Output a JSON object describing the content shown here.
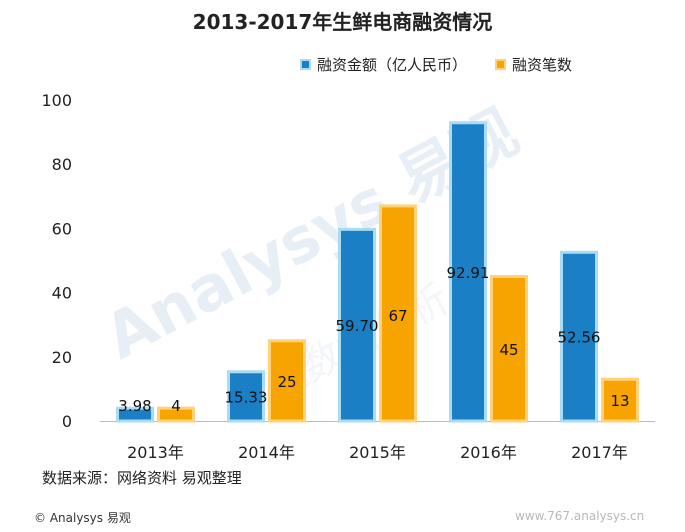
{
  "title": "2013-2017年生鲜电商融资情况",
  "source": "数据来源：网络资料 易观整理",
  "footer": "© Analysys 易观",
  "watermark": {
    "text": "Analysys 易观",
    "sub": "易观数据分析",
    "url": "www.767.analysys.cn"
  },
  "colors": {
    "series1": "#1a7fc4",
    "series1_edge": "#a9dcf2",
    "series2": "#f7a400",
    "series2_edge": "#ffd27a",
    "axis": "#bbbbbb",
    "text": "#222222"
  },
  "chart_data": {
    "type": "bar",
    "title": "2013-2017年生鲜电商融资情况",
    "categories": [
      "2013年",
      "2014年",
      "2015年",
      "2016年",
      "2017年"
    ],
    "series": [
      {
        "name": "融资金额（亿人民币）",
        "values": [
          3.98,
          15.33,
          59.7,
          92.91,
          52.56
        ],
        "labels": [
          "3.98",
          "15.33",
          "59.70",
          "92.91",
          "52.56"
        ]
      },
      {
        "name": "融资笔数",
        "values": [
          4,
          25,
          67,
          45,
          13
        ],
        "labels": [
          "4",
          "25",
          "67",
          "45",
          "13"
        ]
      }
    ],
    "ylim": [
      0,
      100
    ],
    "yticks": [
      0,
      20,
      40,
      60,
      80,
      100
    ],
    "grid": false,
    "legend": "top-right"
  }
}
